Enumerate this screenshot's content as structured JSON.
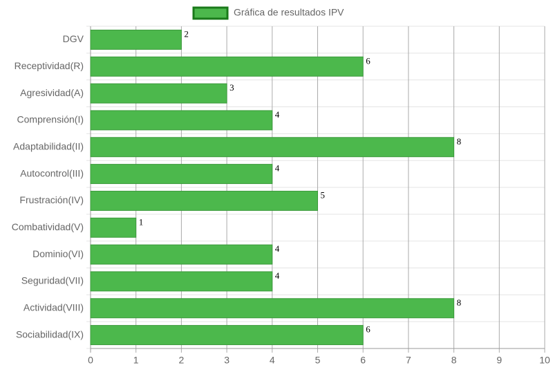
{
  "chart_data": {
    "type": "bar",
    "orientation": "horizontal",
    "categories": [
      "DGV",
      "Receptividad(R)",
      "Agresividad(A)",
      "Comprensión(I)",
      "Adaptabilidad(II)",
      "Autocontrol(III)",
      "Frustración(IV)",
      "Combatividad(V)",
      "Dominio(VI)",
      "Seguridad(VII)",
      "Actividad(VIII)",
      "Sociabilidad(IX)"
    ],
    "series": [
      {
        "name": "Gráfica de resultados IPV",
        "color": "#4cb84c",
        "values": [
          2,
          6,
          3,
          4,
          8,
          4,
          5,
          1,
          4,
          4,
          8,
          6
        ]
      }
    ],
    "xlim": [
      0,
      10
    ],
    "xticks": [
      0,
      1,
      2,
      3,
      4,
      5,
      6,
      7,
      8,
      9,
      10
    ],
    "grid": true,
    "legend": "top"
  }
}
